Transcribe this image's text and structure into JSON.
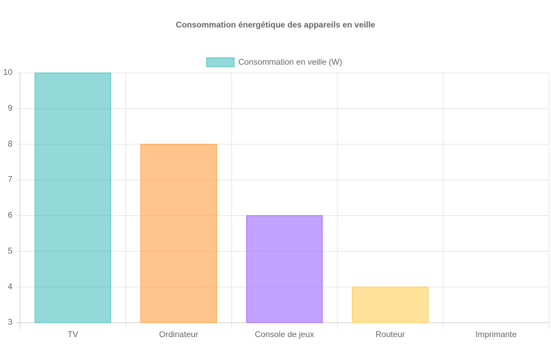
{
  "chart_data": {
    "type": "bar",
    "title": "Consommation énergétique des appareils en veille",
    "categories": [
      "TV",
      "Ordinateur",
      "Console de jeux",
      "Routeur",
      "Imprimante"
    ],
    "series": [
      {
        "name": "Consommation en veille (W)",
        "colors": [
          "#4bc0c0",
          "#ff9f40",
          "#9966ff",
          "#ffcd56",
          "#c9cbcf"
        ],
        "values": [
          10,
          8,
          6,
          4,
          3
        ]
      }
    ],
    "ylim": [
      3,
      10
    ],
    "yticks": [
      3,
      4,
      5,
      6,
      7,
      8,
      9,
      10
    ],
    "grid": true,
    "legend": "top"
  }
}
